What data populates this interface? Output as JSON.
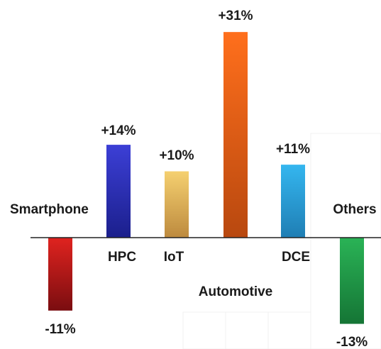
{
  "chart_data": {
    "type": "bar",
    "categories": [
      "Smartphone",
      "HPC",
      "IoT",
      "Automotive",
      "DCE",
      "Others"
    ],
    "values": [
      -11,
      14,
      10,
      31,
      11,
      -13
    ],
    "value_labels": [
      "-11%",
      "+14%",
      "+10%",
      "+31%",
      "+11%",
      "-13%"
    ],
    "ylim": [
      -13,
      31
    ],
    "grid": false,
    "legend": "none",
    "colors": [
      [
        "#e0231f",
        "#7a0d10"
      ],
      [
        "#3c3fd6",
        "#1b1f8c"
      ],
      [
        "#f5d070",
        "#bd8a3e"
      ],
      [
        "#ff6f1c",
        "#b8480f"
      ],
      [
        "#34b6ef",
        "#1f7eb4"
      ],
      [
        "#2ab356",
        "#157535"
      ]
    ]
  }
}
